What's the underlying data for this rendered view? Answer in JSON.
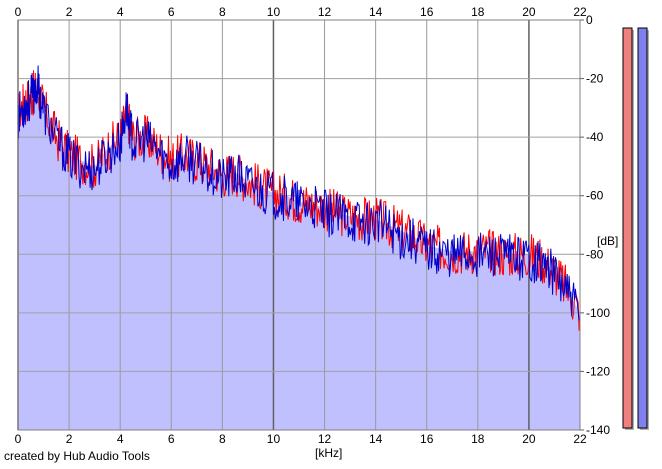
{
  "chart_data": {
    "type": "area",
    "xlabel": "[kHz]",
    "ylabel": "[dB]",
    "xlim": [
      0,
      22
    ],
    "ylim": [
      -140,
      0
    ],
    "x_ticks": [
      0,
      2,
      4,
      6,
      8,
      10,
      12,
      14,
      16,
      18,
      20,
      22
    ],
    "y_ticks": [
      0,
      -20,
      -40,
      -60,
      -80,
      -100,
      -120,
      -140
    ],
    "grid": true,
    "series": [
      {
        "color": "#ff0000",
        "x": [
          0,
          0.25,
          0.5,
          0.75,
          1,
          1.5,
          2,
          2.5,
          3,
          3.5,
          4,
          4.25,
          4.5,
          5,
          5.5,
          6,
          6.5,
          7,
          7.5,
          8,
          8.5,
          9,
          9.5,
          10,
          10.5,
          11,
          11.5,
          12,
          12.5,
          13,
          13.5,
          14,
          14.5,
          15,
          15.5,
          16,
          16.5,
          17,
          17.5,
          18,
          18.5,
          19,
          19.5,
          20,
          20.5,
          21,
          21.5,
          22
        ],
        "y": [
          -32,
          -28,
          -26,
          -24,
          -30,
          -40,
          -46,
          -48,
          -50,
          -44,
          -40,
          -32,
          -40,
          -40,
          -44,
          -48,
          -46,
          -48,
          -50,
          -53,
          -52,
          -55,
          -57,
          -59,
          -60,
          -62,
          -63,
          -64,
          -66,
          -67,
          -68,
          -68,
          -70,
          -72,
          -74,
          -77,
          -78,
          -79,
          -79,
          -79,
          -79,
          -80,
          -80,
          -80,
          -82,
          -86,
          -92,
          -100
        ]
      },
      {
        "color": "#0000cc",
        "x": [
          0,
          0.25,
          0.5,
          0.75,
          1,
          1.5,
          2,
          2.5,
          3,
          3.5,
          4,
          4.25,
          4.5,
          5,
          5.5,
          6,
          6.5,
          7,
          7.5,
          8,
          8.5,
          9,
          9.5,
          10,
          10.5,
          11,
          11.5,
          12,
          12.5,
          13,
          13.5,
          14,
          14.5,
          15,
          15.5,
          16,
          16.5,
          17,
          17.5,
          18,
          18.5,
          19,
          19.5,
          20,
          20.5,
          21,
          21.5,
          22
        ],
        "y": [
          -33,
          -29,
          -27,
          -22,
          -31,
          -41,
          -47,
          -50,
          -51,
          -46,
          -42,
          -30,
          -42,
          -41,
          -45,
          -50,
          -47,
          -49,
          -51,
          -55,
          -53,
          -56,
          -58,
          -60,
          -61,
          -63,
          -64,
          -66,
          -67,
          -68,
          -69,
          -69,
          -71,
          -74,
          -75,
          -78,
          -79,
          -80,
          -80,
          -80,
          -80,
          -81,
          -81,
          -81,
          -83,
          -87,
          -93,
          -102
        ]
      }
    ],
    "fill_color": "#c0c0ff"
  },
  "levels": [
    {
      "fill": "#f08080",
      "level": 1
    },
    {
      "fill": "#8080f0",
      "level": 1
    }
  ],
  "credit": "created by Hub Audio Tools"
}
